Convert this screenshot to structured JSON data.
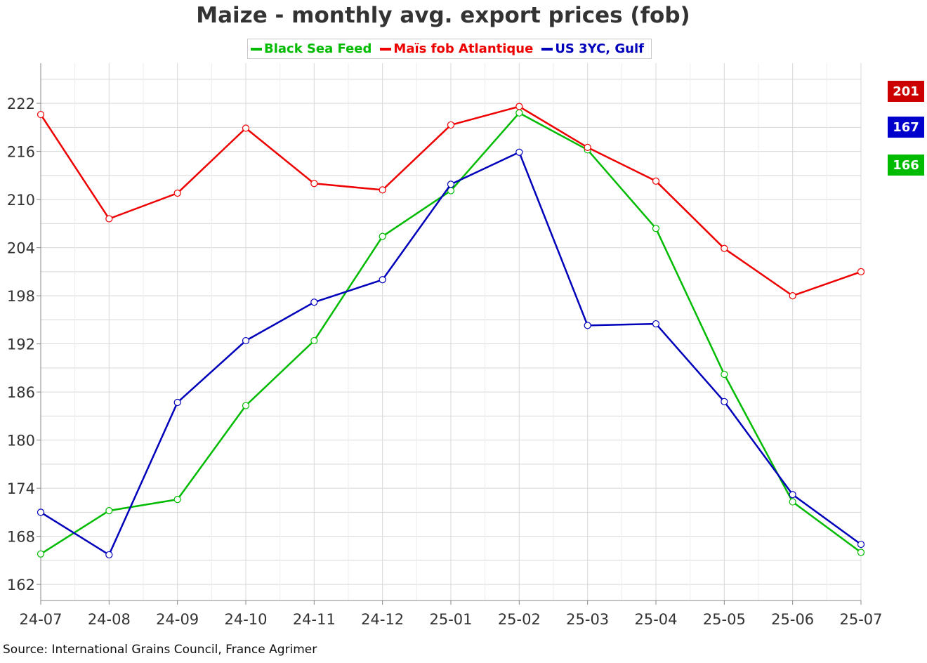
{
  "chart_data": {
    "type": "line",
    "title": "Maize - monthly avg. export prices (fob)",
    "xlabel": "",
    "ylabel": "",
    "categories": [
      "24-07",
      "24-08",
      "24-09",
      "24-10",
      "24-11",
      "24-12",
      "25-01",
      "25-02",
      "25-03",
      "25-04",
      "25-05",
      "25-06",
      "25-07"
    ],
    "yticks": [
      162,
      168,
      174,
      180,
      186,
      192,
      198,
      204,
      210,
      216,
      222
    ],
    "ylim": [
      160,
      227
    ],
    "grid": true,
    "legend_position": "top-center",
    "series": [
      {
        "name": "Black Sea Feed",
        "color": "#00bb00",
        "values": [
          165.8,
          171.2,
          172.6,
          184.3,
          192.4,
          205.4,
          211.1,
          220.8,
          216.2,
          206.4,
          188.2,
          172.3,
          166
        ]
      },
      {
        "name": "Maïs fob Atlantique",
        "color": "#ee0000",
        "values": [
          220.6,
          207.6,
          210.8,
          218.9,
          212.0,
          211.2,
          219.3,
          221.6,
          216.5,
          212.3,
          203.9,
          198.0,
          201
        ]
      },
      {
        "name": "US 3YC, Gulf",
        "color": "#0000bb",
        "values": [
          171.0,
          165.7,
          184.7,
          192.4,
          197.2,
          200.0,
          211.9,
          215.9,
          194.3,
          194.5,
          184.8,
          173.2,
          167
        ]
      }
    ],
    "end_labels": [
      {
        "value": "201",
        "color": "#cc0000"
      },
      {
        "value": "167",
        "color": "#0000cc"
      },
      {
        "value": "166",
        "color": "#00bb00"
      }
    ],
    "source": "Source: International Grains Council, France Agrimer"
  }
}
